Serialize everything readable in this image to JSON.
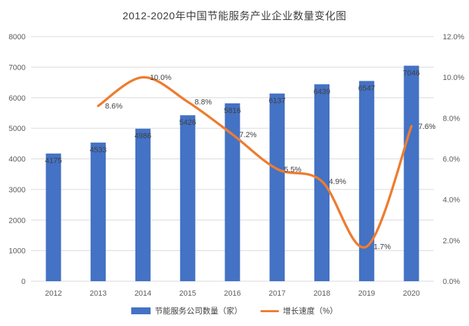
{
  "title": "2012-2020年中国节能服务产业企业数量变化图",
  "legend": {
    "bar_label": "节能服务公司数量（家）",
    "line_label": "增长速度（%）"
  },
  "chart_data": {
    "type": "combo-bar-line",
    "title": "2012-2020年中国节能服务产业企业数量变化图",
    "categories": [
      "2012",
      "2013",
      "2014",
      "2015",
      "2016",
      "2017",
      "2018",
      "2019",
      "2020"
    ],
    "series": [
      {
        "name": "节能服务公司数量（家）",
        "type": "bar",
        "axis": "left",
        "color": "#4472C4",
        "values": [
          4175,
          4533,
          4986,
          5426,
          5816,
          6137,
          6439,
          6547,
          7046
        ],
        "labels": [
          "4175",
          "4533",
          "4986",
          "5426",
          "5816",
          "6137",
          "6439",
          "6547",
          "7046"
        ]
      },
      {
        "name": "增长速度（%）",
        "type": "line",
        "axis": "right",
        "color": "#ED7D31",
        "values": [
          null,
          8.6,
          10.0,
          8.8,
          7.2,
          5.5,
          4.9,
          1.7,
          7.6
        ],
        "labels": [
          null,
          "8.6%",
          "10.0%",
          "8.8%",
          "7.2%",
          "5.5%",
          "4.9%",
          "1.7%",
          "7.6%"
        ]
      }
    ],
    "left_axis": {
      "min": 0,
      "max": 8000,
      "step": 1000,
      "ticks": [
        "0",
        "1000",
        "2000",
        "3000",
        "4000",
        "5000",
        "6000",
        "7000",
        "8000"
      ]
    },
    "right_axis": {
      "min": 0,
      "max": 12,
      "step": 2,
      "ticks": [
        "0.0%",
        "2.0%",
        "4.0%",
        "6.0%",
        "8.0%",
        "10.0%",
        "12.0%"
      ]
    },
    "grid": true,
    "legend_position": "bottom",
    "colors": {
      "grid": "#D9D9D9",
      "axis_text": "#595959",
      "data_label_text": "#404040",
      "background": "#FFFFFF"
    }
  }
}
